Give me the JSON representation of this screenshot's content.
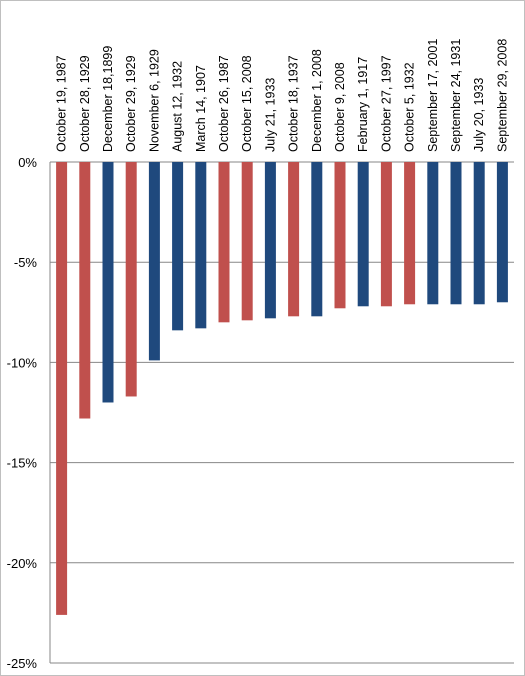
{
  "chart_data": {
    "type": "bar",
    "categories": [
      "October 19, 1987",
      "October 28, 1929",
      "December 18,1899",
      "October 29, 1929",
      "November 6, 1929",
      "August 12, 1932",
      "March 14, 1907",
      "October 26, 1987",
      "October 15, 2008",
      "July 21, 1933",
      "October 18, 1937",
      "December 1, 2008",
      "October 9, 2008",
      "February 1, 1917",
      "October 27, 1997",
      "October 5, 1932",
      "September 17, 2001",
      "September 24, 1931",
      "July 20, 1933",
      "September 29, 2008"
    ],
    "values": [
      -22.6,
      -12.8,
      -12.0,
      -11.7,
      -9.9,
      -8.4,
      -8.3,
      -8.0,
      -7.9,
      -7.8,
      -7.7,
      -7.7,
      -7.3,
      -7.2,
      -7.2,
      -7.1,
      -7.1,
      -7.1,
      -7.1,
      -7.0
    ],
    "colors": [
      "#c0504d",
      "#c0504d",
      "#1f497d",
      "#c0504d",
      "#1f497d",
      "#1f497d",
      "#1f497d",
      "#c0504d",
      "#c0504d",
      "#1f497d",
      "#c0504d",
      "#1f497d",
      "#c0504d",
      "#1f497d",
      "#c0504d",
      "#c0504d",
      "#1f497d",
      "#1f497d",
      "#1f497d",
      "#1f497d"
    ],
    "yticks": [
      0,
      -5,
      -10,
      -15,
      -20,
      -25
    ],
    "ytick_labels": [
      "0%",
      "-5%",
      "-10%",
      "-15%",
      "-20%",
      "-25%"
    ],
    "ylim": [
      -25,
      0
    ],
    "grid": true,
    "title": "",
    "xlabel": "",
    "ylabel": ""
  }
}
